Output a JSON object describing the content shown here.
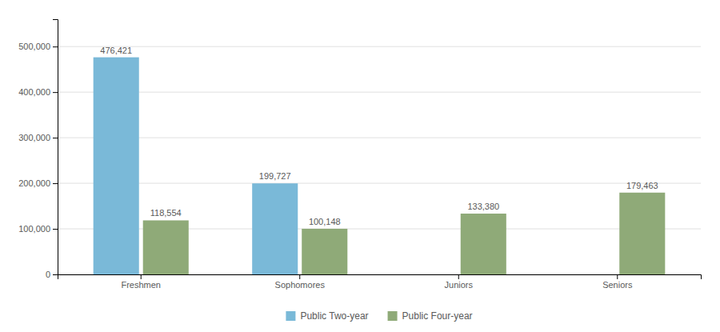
{
  "chart_data": {
    "type": "bar",
    "categories": [
      "Freshmen",
      "Sophomores",
      "Juniors",
      "Seniors"
    ],
    "series": [
      {
        "name": "Public Two-year",
        "color": "#7ab9d8",
        "values": [
          476421,
          199727,
          0,
          0
        ],
        "value_labels": [
          "476,421",
          "199,727",
          null,
          null
        ]
      },
      {
        "name": "Public Four-year",
        "color": "#8faa78",
        "values": [
          118554,
          100148,
          133380,
          179463
        ],
        "value_labels": [
          "118,554",
          "100,148",
          "133,380",
          "179,463"
        ]
      }
    ],
    "ylim": [
      0,
      560000
    ],
    "yticks": [
      0,
      {
        "value": 100000,
        "label": "100,000"
      },
      {
        "value": 200000,
        "label": "200,000"
      },
      {
        "value": 300000,
        "label": "300,000"
      },
      {
        "value": 400000,
        "label": "400,000"
      },
      {
        "value": 500000,
        "label": "500,000"
      }
    ],
    "grid": true,
    "legend": "bottom",
    "data_labels": true
  }
}
